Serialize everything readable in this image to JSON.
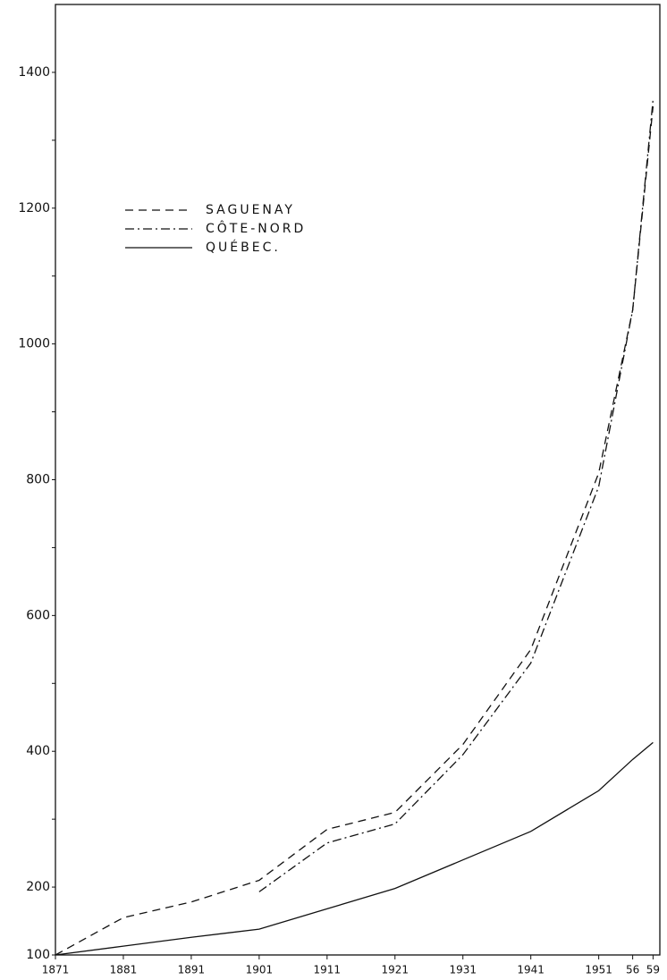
{
  "chart_data": {
    "type": "line",
    "x": [
      1871,
      1881,
      1891,
      1901,
      1911,
      1921,
      1931,
      1941,
      1951,
      1956,
      1959
    ],
    "series": [
      {
        "name": "SAGUENAY",
        "color": "#111111",
        "dash": "dashed",
        "values": [
          100,
          155,
          178,
          210,
          285,
          310,
          410,
          550,
          810,
          1050,
          1350
        ]
      },
      {
        "name": "CÔTE-NORD",
        "color": "#111111",
        "dash": "dashdot",
        "values": [
          null,
          null,
          null,
          193,
          265,
          293,
          395,
          530,
          790,
          1050,
          1360
        ]
      },
      {
        "name": "QUÉBEC.",
        "color": "#111111",
        "dash": "solid",
        "values": [
          100,
          113,
          126,
          138,
          168,
          198,
          240,
          282,
          342,
          388,
          413
        ]
      }
    ],
    "xlim": [
      1871,
      1960
    ],
    "xticks": [
      1871,
      1881,
      1891,
      1901,
      1911,
      1921,
      1931,
      1941,
      1951,
      {
        "value": 1956,
        "label": "56"
      },
      {
        "value": 1959,
        "label": "59"
      }
    ],
    "ylim": [
      100,
      1500
    ],
    "yticks": [
      100,
      200,
      400,
      600,
      800,
      1000,
      1200,
      1400
    ],
    "minor_yticks": [
      300,
      500,
      700,
      900,
      1100,
      1300
    ],
    "grid": false,
    "legend": "upper left"
  }
}
